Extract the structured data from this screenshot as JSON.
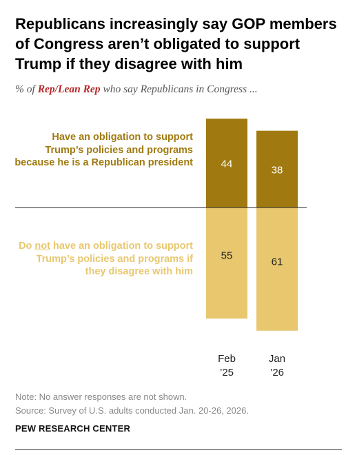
{
  "title": "Republicans increasingly say GOP members of Congress aren’t obligated to support Trump if they disagree with him",
  "subtitle": {
    "prefix": "% of ",
    "highlight": "Rep/Lean Rep",
    "suffix": " who say Republicans in Congress ..."
  },
  "labels": {
    "top": "Have an obligation to support Trump’s policies and programs because he is a Republican president",
    "bottom_pre": "Do ",
    "bottom_underline": "not",
    "bottom_post": " have an obligation to support Trump’s policies and programs if they disagree with him"
  },
  "chart_data": {
    "type": "bar",
    "stacked": true,
    "diverging": true,
    "categories": [
      "Feb ’25",
      "Jan ’26"
    ],
    "category_lines": [
      [
        "Feb",
        "’25"
      ],
      [
        "Jan",
        "’26"
      ]
    ],
    "series": [
      {
        "values": [
          44,
          38
        ],
        "color": "#a07a10",
        "label_color": "#ffffff"
      },
      {
        "values": [
          55,
          61
        ],
        "color": "#e8c76f",
        "label_color": "#222222"
      }
    ],
    "grid": false,
    "legend": "left"
  },
  "footer": {
    "note": "Note: No answer responses are not shown.",
    "source": "Source: Survey of U.S. adults conducted Jan. 20-26, 2026.",
    "brand": "PEW RESEARCH CENTER"
  }
}
